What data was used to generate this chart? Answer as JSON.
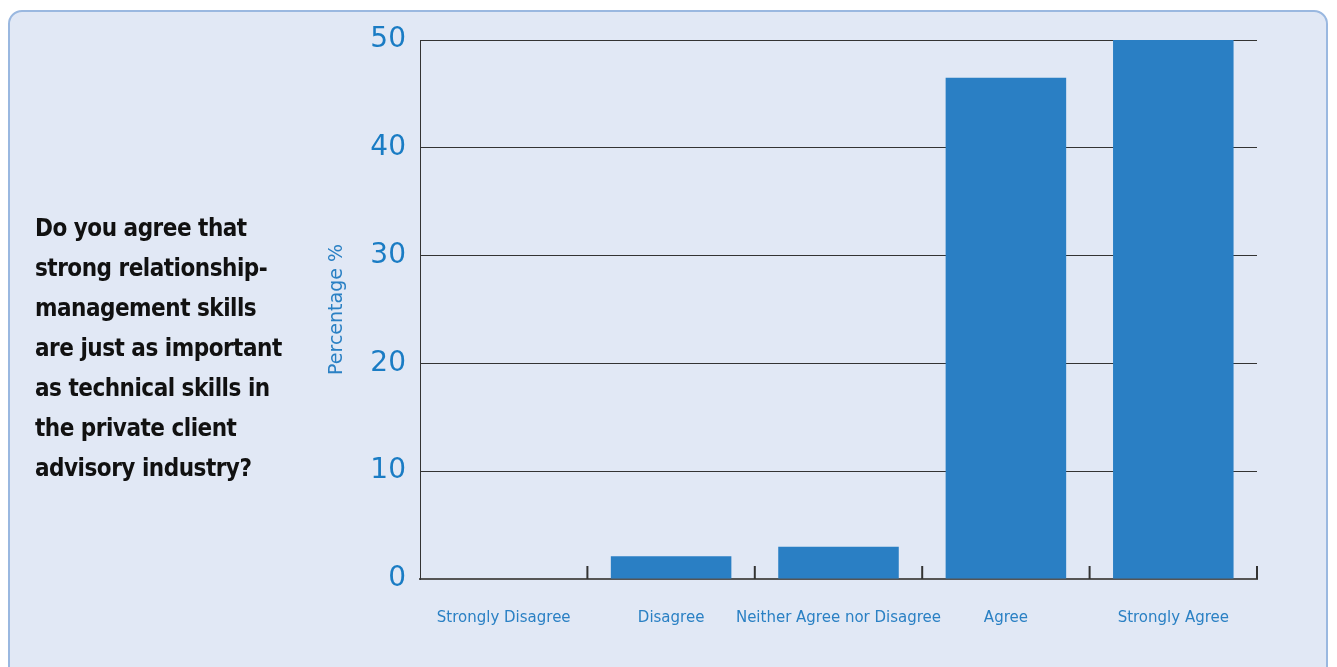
{
  "chart_data": {
    "type": "bar",
    "title": "Do you agree that strong relationship-management skills are just as important as technical skills in the private client advisory industry?",
    "ylabel": "Percentage %",
    "categories": [
      "Strongly Disagree",
      "Disagree",
      "Neither Agree nor Disagree",
      "Agree",
      "Strongly Agree"
    ],
    "values": [
      0,
      2.1,
      3.0,
      46.5,
      50
    ],
    "color": "#2a7fc4",
    "ylim": [
      0,
      50
    ],
    "yticks": [
      0,
      10,
      20,
      30,
      40,
      50
    ],
    "grid": "y",
    "legend": false
  }
}
